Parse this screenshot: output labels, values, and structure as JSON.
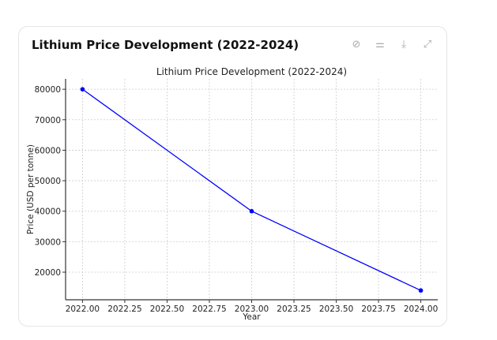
{
  "card": {
    "title": "Lithium Price Development (2022-2024)",
    "icons": [
      "hide-icon",
      "settings-sliders-icon",
      "download-icon",
      "expand-icon"
    ]
  },
  "chart_data": {
    "type": "line",
    "title": "Lithium Price Development (2022-2024)",
    "xlabel": "Year",
    "ylabel": "Price (USD per tonne)",
    "x": [
      2022,
      2023,
      2024
    ],
    "series": [
      {
        "values": [
          80000,
          40000,
          14000
        ],
        "color": "#0000ff",
        "marker": "circle"
      }
    ],
    "xticks": [
      "2022.00",
      "2022.25",
      "2022.50",
      "2022.75",
      "2023.00",
      "2023.25",
      "2023.50",
      "2023.75",
      "2024.00"
    ],
    "yticks": [
      "20000",
      "30000",
      "40000",
      "50000",
      "60000",
      "70000",
      "80000"
    ],
    "xlim": [
      2021.9,
      2024.1
    ],
    "ylim": [
      10950,
      83400
    ],
    "grid": true
  }
}
